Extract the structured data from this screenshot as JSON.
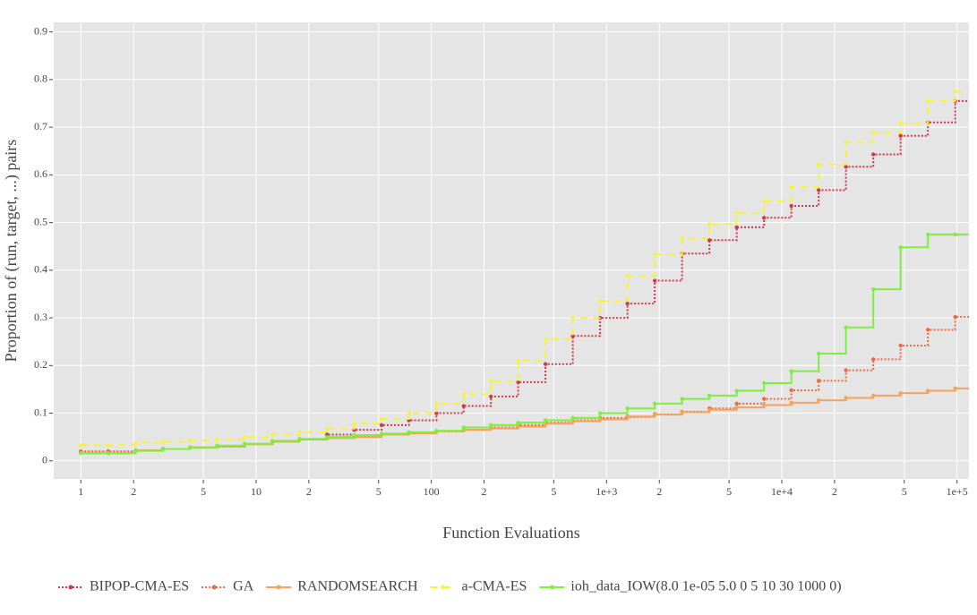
{
  "chart_data": {
    "type": "step",
    "x_label": "Function Evaluations",
    "y_label": "Proportion of (run, target, ...) pairs",
    "x_log": true,
    "grid": true,
    "legend": "bottom",
    "xlim": [
      0.7,
      117000
    ],
    "ylim": [
      -0.038,
      0.92
    ],
    "xticks": [
      1,
      2,
      5,
      10,
      {
        "value": 20,
        "label": "2"
      },
      {
        "value": 50,
        "label": "5"
      },
      100,
      {
        "value": 200,
        "label": "2"
      },
      {
        "value": 500,
        "label": "5"
      },
      {
        "value": 1000,
        "label": "1e+3"
      },
      {
        "value": 2000,
        "label": "2"
      },
      {
        "value": 5000,
        "label": "5"
      },
      {
        "value": 10000,
        "label": "1e+4"
      },
      {
        "value": 20000,
        "label": "2"
      },
      {
        "value": 50000,
        "label": "5"
      },
      {
        "value": 100000,
        "label": "1e+5"
      }
    ],
    "yticks": [
      0,
      0.1,
      0.2,
      0.3,
      0.4,
      0.5,
      0.6,
      0.7,
      0.8,
      0.9
    ],
    "x": [
      1,
      1.43,
      2.05,
      2.94,
      4.2,
      6,
      8.6,
      12.4,
      17.7,
      25.4,
      36.3,
      52,
      74.5,
      107,
      153,
      219,
      313,
      448,
      642,
      919,
      1316,
      1884,
      2698,
      3864,
      5532,
      7921,
      11340,
      16240,
      23250,
      33290,
      47660,
      68240,
      97700
    ],
    "series": [
      {
        "name": "BIPOP-CMA-ES",
        "color": "#d0394a",
        "dash": "2,2",
        "values": [
          0.018,
          0.018,
          0.022,
          0.025,
          0.028,
          0.03,
          0.035,
          0.04,
          0.045,
          0.055,
          0.065,
          0.075,
          0.085,
          0.1,
          0.115,
          0.135,
          0.165,
          0.203,
          0.262,
          0.3,
          0.33,
          0.378,
          0.435,
          0.463,
          0.49,
          0.51,
          0.535,
          0.568,
          0.617,
          0.643,
          0.682,
          0.71,
          0.755
        ]
      },
      {
        "name": "GA",
        "color": "#ec6a45",
        "dash": "2,2",
        "values": [
          0.02,
          0.02,
          0.022,
          0.025,
          0.028,
          0.03,
          0.035,
          0.04,
          0.045,
          0.048,
          0.05,
          0.055,
          0.058,
          0.062,
          0.065,
          0.07,
          0.075,
          0.08,
          0.085,
          0.09,
          0.093,
          0.098,
          0.103,
          0.11,
          0.12,
          0.13,
          0.148,
          0.168,
          0.19,
          0.213,
          0.242,
          0.275,
          0.302
        ]
      },
      {
        "name": "RANDOMSEARCH",
        "color": "#f5a35b",
        "dash": "none",
        "values": [
          0.016,
          0.016,
          0.022,
          0.025,
          0.028,
          0.03,
          0.035,
          0.04,
          0.045,
          0.048,
          0.05,
          0.055,
          0.058,
          0.062,
          0.065,
          0.068,
          0.072,
          0.078,
          0.083,
          0.087,
          0.092,
          0.097,
          0.102,
          0.107,
          0.112,
          0.117,
          0.122,
          0.127,
          0.132,
          0.137,
          0.142,
          0.147,
          0.152
        ]
      },
      {
        "name": "a-CMA-ES",
        "color": "#f7f33a",
        "dash": "8,6",
        "values": [
          0.033,
          0.033,
          0.038,
          0.04,
          0.043,
          0.045,
          0.05,
          0.055,
          0.06,
          0.067,
          0.078,
          0.088,
          0.1,
          0.12,
          0.14,
          0.167,
          0.21,
          0.255,
          0.3,
          0.335,
          0.388,
          0.433,
          0.467,
          0.497,
          0.52,
          0.545,
          0.575,
          0.622,
          0.668,
          0.688,
          0.708,
          0.755,
          0.775
        ]
      },
      {
        "name": "ioh_data_IOW(8.0 1e-05 5.0 0 5 10 30 1000 0)",
        "color": "#7cf03c",
        "dash": "none",
        "values": [
          0.016,
          0.016,
          0.021,
          0.025,
          0.028,
          0.032,
          0.036,
          0.042,
          0.046,
          0.05,
          0.054,
          0.057,
          0.06,
          0.063,
          0.07,
          0.075,
          0.08,
          0.085,
          0.09,
          0.1,
          0.11,
          0.12,
          0.13,
          0.137,
          0.147,
          0.163,
          0.188,
          0.225,
          0.28,
          0.36,
          0.448,
          0.475,
          0.475
        ]
      }
    ]
  }
}
